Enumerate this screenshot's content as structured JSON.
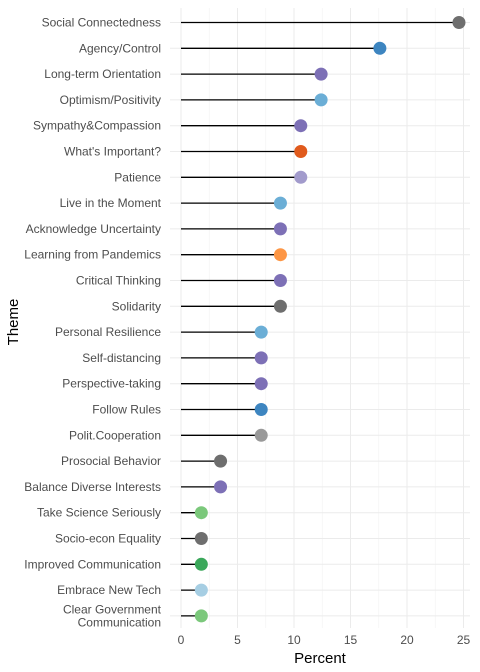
{
  "chart_data": {
    "type": "lollipop",
    "xlabel": "Percent",
    "ylabel": "Theme",
    "xlim": [
      0,
      25
    ],
    "xticks": [
      0,
      5,
      10,
      15,
      20,
      25
    ],
    "grid": true,
    "categories": [
      {
        "label": "Social Connectedness",
        "value": 24.6,
        "color": "#6e6e6e"
      },
      {
        "label": "Agency/Control",
        "value": 17.6,
        "color": "#3d85c0"
      },
      {
        "label": "Long-term Orientation",
        "value": 12.4,
        "color": "#7d70b6"
      },
      {
        "label": "Optimism/Positivity",
        "value": 12.4,
        "color": "#6baed6"
      },
      {
        "label": "Sympathy&Compassion",
        "value": 10.6,
        "color": "#7d70b6"
      },
      {
        "label": "What's Important?",
        "value": 10.6,
        "color": "#e05a1c"
      },
      {
        "label": "Patience",
        "value": 10.6,
        "color": "#a29bcc"
      },
      {
        "label": "Live in the Moment",
        "value": 8.8,
        "color": "#6baed6"
      },
      {
        "label": "Acknowledge Uncertainty",
        "value": 8.8,
        "color": "#7d70b6"
      },
      {
        "label": "Learning from Pandemics",
        "value": 8.8,
        "color": "#fd9645"
      },
      {
        "label": "Critical Thinking",
        "value": 8.8,
        "color": "#7d70b6"
      },
      {
        "label": "Solidarity",
        "value": 8.8,
        "color": "#6e6e6e"
      },
      {
        "label": "Personal Resilience",
        "value": 7.1,
        "color": "#6baed6"
      },
      {
        "label": "Self-distancing",
        "value": 7.1,
        "color": "#7d70b6"
      },
      {
        "label": "Perspective-taking",
        "value": 7.1,
        "color": "#7d70b6"
      },
      {
        "label": "Follow Rules",
        "value": 7.1,
        "color": "#3d85c0"
      },
      {
        "label": "Polit.Cooperation",
        "value": 7.1,
        "color": "#999999"
      },
      {
        "label": "Prosocial Behavior",
        "value": 3.5,
        "color": "#6e6e6e"
      },
      {
        "label": "Balance Diverse Interests",
        "value": 3.5,
        "color": "#7d70b6"
      },
      {
        "label": "Take Science Seriously",
        "value": 1.8,
        "color": "#7bc87b"
      },
      {
        "label": "Socio-econ Equality",
        "value": 1.8,
        "color": "#6e6e6e"
      },
      {
        "label": "Improved Communication",
        "value": 1.8,
        "color": "#3aa75a"
      },
      {
        "label": "Embrace New Tech",
        "value": 1.8,
        "color": "#a6cee3"
      },
      {
        "label": "Clear Government Communication",
        "value": 1.8,
        "color": "#7bc87b",
        "lines": [
          "Clear Government",
          "Communication"
        ]
      }
    ]
  }
}
